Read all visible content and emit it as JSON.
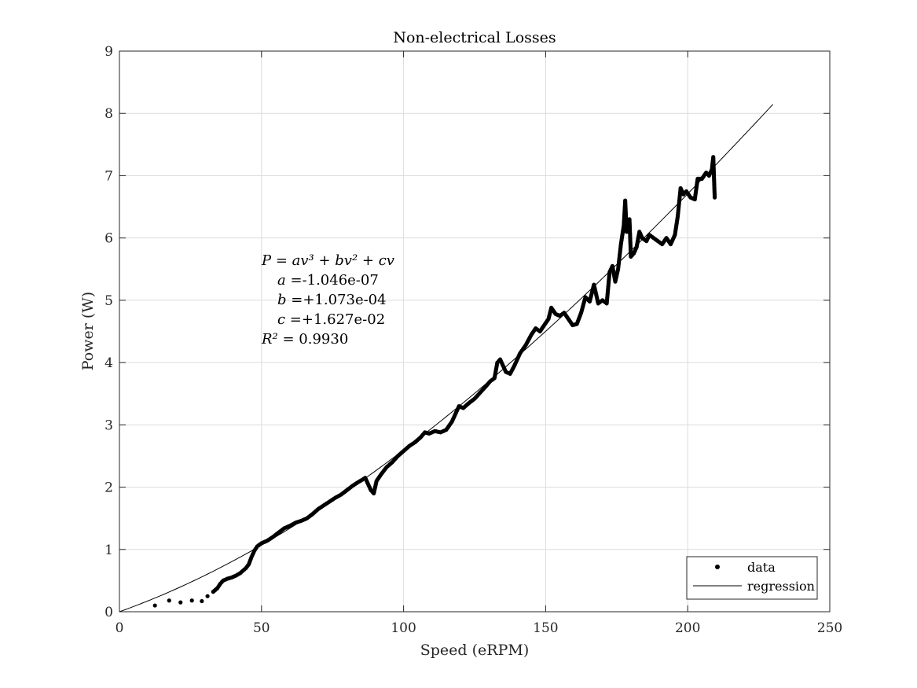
{
  "chart_data": {
    "type": "scatter",
    "title": "Non-electrical Losses",
    "xlabel": "Speed (eRPM)",
    "ylabel": "Power (W)",
    "xlim": [
      0,
      250
    ],
    "ylim": [
      0,
      9
    ],
    "xticks": [
      "0",
      "50",
      "100",
      "150",
      "200",
      "250"
    ],
    "yticks": [
      "0",
      "1",
      "2",
      "3",
      "4",
      "5",
      "6",
      "7",
      "8",
      "9"
    ],
    "grid": true,
    "legend_position": "bottom-right",
    "legend": [
      {
        "label": "data",
        "marker": "dot"
      },
      {
        "label": "regression",
        "marker": "line"
      }
    ],
    "annotation": {
      "equation": "P = av³ + bv² + cv",
      "a_label": "a =",
      "a_value": "-1.046e-07",
      "b_label": "b =",
      "b_value": "+1.073e-04",
      "c_label": "c =",
      "c_value": "+1.627e-02",
      "r2_label": "R² = ",
      "r2_value": "0.9930"
    },
    "regression": {
      "a": -1.046e-07,
      "b": 0.0001073,
      "c": 0.01627,
      "x_range": [
        0,
        230
      ]
    },
    "series": [
      {
        "name": "data",
        "points": [
          [
            12.5,
            0.1
          ],
          [
            17.5,
            0.18
          ],
          [
            21.5,
            0.15
          ],
          [
            25.5,
            0.18
          ],
          [
            29,
            0.17
          ],
          [
            31,
            0.25
          ],
          [
            33,
            0.32
          ],
          [
            34.5,
            0.38
          ],
          [
            35.5,
            0.45
          ],
          [
            36.5,
            0.5
          ],
          [
            38,
            0.53
          ],
          [
            39.5,
            0.55
          ],
          [
            41,
            0.58
          ],
          [
            42.5,
            0.62
          ],
          [
            43.5,
            0.66
          ],
          [
            44.5,
            0.7
          ],
          [
            45.5,
            0.76
          ],
          [
            46.5,
            0.88
          ],
          [
            47.5,
            0.98
          ],
          [
            48.5,
            1.05
          ],
          [
            50,
            1.1
          ],
          [
            52,
            1.14
          ],
          [
            54,
            1.2
          ],
          [
            56,
            1.27
          ],
          [
            58,
            1.34
          ],
          [
            60,
            1.38
          ],
          [
            62,
            1.43
          ],
          [
            64,
            1.46
          ],
          [
            66,
            1.5
          ],
          [
            68,
            1.57
          ],
          [
            70,
            1.65
          ],
          [
            72,
            1.71
          ],
          [
            74,
            1.77
          ],
          [
            76,
            1.83
          ],
          [
            78,
            1.88
          ],
          [
            80,
            1.95
          ],
          [
            82,
            2.02
          ],
          [
            84,
            2.08
          ],
          [
            85.5,
            2.12
          ],
          [
            86.5,
            2.15
          ],
          [
            87.5,
            2.05
          ],
          [
            88.5,
            1.95
          ],
          [
            89.5,
            1.9
          ],
          [
            90.5,
            2.1
          ],
          [
            92,
            2.2
          ],
          [
            94,
            2.32
          ],
          [
            96,
            2.4
          ],
          [
            98,
            2.5
          ],
          [
            100,
            2.58
          ],
          [
            102,
            2.66
          ],
          [
            104,
            2.72
          ],
          [
            106,
            2.8
          ],
          [
            107.5,
            2.88
          ],
          [
            109,
            2.86
          ],
          [
            111,
            2.9
          ],
          [
            113,
            2.88
          ],
          [
            115,
            2.92
          ],
          [
            117,
            3.05
          ],
          [
            118.5,
            3.2
          ],
          [
            119.5,
            3.3
          ],
          [
            121,
            3.27
          ],
          [
            123,
            3.35
          ],
          [
            125,
            3.42
          ],
          [
            127,
            3.52
          ],
          [
            129,
            3.62
          ],
          [
            130.5,
            3.7
          ],
          [
            132,
            3.75
          ],
          [
            133,
            4.0
          ],
          [
            134,
            4.05
          ],
          [
            135,
            3.95
          ],
          [
            136,
            3.85
          ],
          [
            137.5,
            3.82
          ],
          [
            139,
            3.95
          ],
          [
            141,
            4.15
          ],
          [
            143,
            4.28
          ],
          [
            145,
            4.45
          ],
          [
            146.5,
            4.55
          ],
          [
            148,
            4.5
          ],
          [
            149.5,
            4.6
          ],
          [
            151,
            4.7
          ],
          [
            152,
            4.88
          ],
          [
            153.5,
            4.78
          ],
          [
            155,
            4.75
          ],
          [
            156.5,
            4.8
          ],
          [
            158,
            4.7
          ],
          [
            159.5,
            4.6
          ],
          [
            161,
            4.62
          ],
          [
            162.5,
            4.8
          ],
          [
            164,
            5.05
          ],
          [
            165.5,
            4.98
          ],
          [
            167,
            5.25
          ],
          [
            168.5,
            4.95
          ],
          [
            170,
            5.0
          ],
          [
            171.5,
            4.95
          ],
          [
            172.5,
            5.45
          ],
          [
            173.5,
            5.55
          ],
          [
            174.5,
            5.3
          ],
          [
            175.5,
            5.5
          ],
          [
            176.5,
            5.9
          ],
          [
            177.5,
            6.2
          ],
          [
            178,
            6.6
          ],
          [
            178.5,
            6.1
          ],
          [
            179.5,
            6.3
          ],
          [
            180,
            5.7
          ],
          [
            181,
            5.75
          ],
          [
            182,
            5.85
          ],
          [
            183,
            6.1
          ],
          [
            184,
            6.0
          ],
          [
            185.5,
            5.95
          ],
          [
            186.5,
            6.05
          ],
          [
            188,
            6.0
          ],
          [
            189.5,
            5.95
          ],
          [
            191,
            5.9
          ],
          [
            192.5,
            6.0
          ],
          [
            194,
            5.9
          ],
          [
            195.5,
            6.05
          ],
          [
            196.5,
            6.35
          ],
          [
            197.5,
            6.8
          ],
          [
            198.5,
            6.7
          ],
          [
            199.5,
            6.75
          ],
          [
            201,
            6.65
          ],
          [
            202.5,
            6.62
          ],
          [
            203.5,
            6.95
          ],
          [
            205,
            6.95
          ],
          [
            206.5,
            7.05
          ],
          [
            207.5,
            7.0
          ],
          [
            208.5,
            7.1
          ],
          [
            209,
            7.3
          ],
          [
            209.5,
            6.65
          ]
        ]
      },
      {
        "name": "regression"
      }
    ]
  }
}
